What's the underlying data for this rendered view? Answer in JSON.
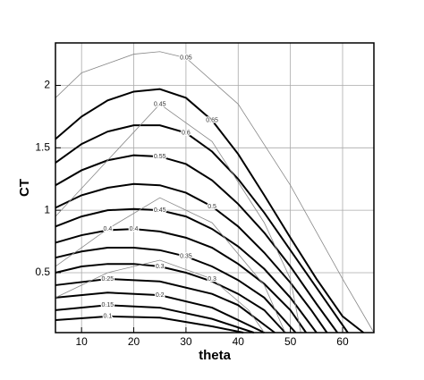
{
  "chart_data": {
    "type": "contour",
    "xlabel": "theta",
    "ylabel": "CT",
    "xlim": [
      5,
      66
    ],
    "ylim": [
      0.02,
      2.34
    ],
    "xticks": [
      10,
      20,
      30,
      40,
      50,
      60
    ],
    "yticks": [
      0.5,
      1,
      1.5,
      2
    ],
    "grid": true,
    "series": [
      {
        "name": "0.65",
        "color": "#000000",
        "x": [
          5,
          10,
          15,
          20,
          25,
          30,
          35,
          40,
          45,
          50,
          55,
          60,
          64
        ],
        "values": [
          1.57,
          1.75,
          1.88,
          1.95,
          1.97,
          1.9,
          1.72,
          1.45,
          1.12,
          0.78,
          0.45,
          0.15,
          0.02
        ]
      },
      {
        "name": "0.6",
        "color": "#000000",
        "x": [
          5,
          10,
          15,
          20,
          25,
          30,
          35,
          40,
          45,
          50,
          55,
          61
        ],
        "values": [
          1.38,
          1.53,
          1.63,
          1.68,
          1.68,
          1.62,
          1.47,
          1.25,
          0.98,
          0.68,
          0.38,
          0.02
        ]
      },
      {
        "name": "0.55",
        "color": "#000000",
        "x": [
          5,
          10,
          15,
          20,
          25,
          30,
          35,
          40,
          45,
          50,
          55,
          59
        ],
        "values": [
          1.2,
          1.32,
          1.4,
          1.44,
          1.43,
          1.37,
          1.24,
          1.05,
          0.82,
          0.55,
          0.25,
          0.02
        ]
      },
      {
        "name": "0.5",
        "color": "#000000",
        "x": [
          5,
          10,
          15,
          20,
          25,
          30,
          35,
          40,
          45,
          50,
          54,
          57
        ],
        "values": [
          1.02,
          1.12,
          1.18,
          1.21,
          1.2,
          1.14,
          1.03,
          0.87,
          0.66,
          0.42,
          0.2,
          0.02
        ]
      },
      {
        "name": "0.45",
        "color": "#000000",
        "x": [
          5,
          10,
          15,
          20,
          25,
          30,
          35,
          40,
          45,
          50,
          55
        ],
        "values": [
          0.87,
          0.95,
          1.0,
          1.01,
          1.0,
          0.95,
          0.85,
          0.71,
          0.53,
          0.3,
          0.02
        ]
      },
      {
        "name": "0.4",
        "color": "#000000",
        "x": [
          5,
          10,
          15,
          20,
          25,
          30,
          35,
          40,
          45,
          50,
          53
        ],
        "values": [
          0.74,
          0.8,
          0.84,
          0.85,
          0.83,
          0.78,
          0.7,
          0.57,
          0.41,
          0.2,
          0.02
        ]
      },
      {
        "name": "0.35",
        "color": "#000000",
        "x": [
          5,
          10,
          15,
          20,
          25,
          30,
          35,
          40,
          45,
          51
        ],
        "values": [
          0.62,
          0.67,
          0.7,
          0.7,
          0.68,
          0.63,
          0.55,
          0.44,
          0.3,
          0.02
        ]
      },
      {
        "name": "0.3",
        "color": "#000000",
        "x": [
          5,
          10,
          15,
          20,
          25,
          30,
          35,
          40,
          45,
          49
        ],
        "values": [
          0.5,
          0.55,
          0.57,
          0.57,
          0.55,
          0.5,
          0.43,
          0.33,
          0.2,
          0.02
        ]
      },
      {
        "name": "0.25",
        "color": "#000000",
        "x": [
          5,
          15,
          25,
          35,
          40,
          47
        ],
        "values": [
          0.4,
          0.45,
          0.43,
          0.33,
          0.24,
          0.02
        ]
      },
      {
        "name": "0.2",
        "color": "#000000",
        "x": [
          5,
          15,
          25,
          35,
          45
        ],
        "values": [
          0.3,
          0.34,
          0.32,
          0.22,
          0.02
        ]
      },
      {
        "name": "0.15",
        "color": "#000000",
        "x": [
          5,
          15,
          25,
          35,
          43
        ],
        "values": [
          0.2,
          0.24,
          0.22,
          0.13,
          0.02
        ]
      },
      {
        "name": "0.1",
        "color": "#000000",
        "x": [
          5,
          15,
          25,
          35,
          41
        ],
        "values": [
          0.12,
          0.15,
          0.14,
          0.07,
          0.02
        ]
      },
      {
        "name": "0.05",
        "color": "#888888",
        "x": [
          5,
          10,
          20,
          25,
          30,
          40,
          50,
          60,
          66
        ],
        "values": [
          1.9,
          2.1,
          2.25,
          2.27,
          2.22,
          1.85,
          1.2,
          0.45,
          0.02
        ]
      },
      {
        "name": "0.45",
        "color": "#888888",
        "x": [
          5,
          15,
          25,
          35,
          45,
          50,
          52
        ],
        "values": [
          0.95,
          1.4,
          1.85,
          1.55,
          0.9,
          0.45,
          0.02
        ]
      },
      {
        "name": "0.4",
        "color": "#888888",
        "x": [
          5,
          15,
          25,
          35,
          45,
          49
        ],
        "values": [
          0.55,
          0.85,
          1.1,
          0.9,
          0.4,
          0.02
        ]
      },
      {
        "name": "0.3",
        "color": "#888888",
        "x": [
          5,
          15,
          25,
          35,
          42,
          45
        ],
        "values": [
          0.3,
          0.5,
          0.6,
          0.45,
          0.2,
          0.02
        ]
      }
    ]
  }
}
